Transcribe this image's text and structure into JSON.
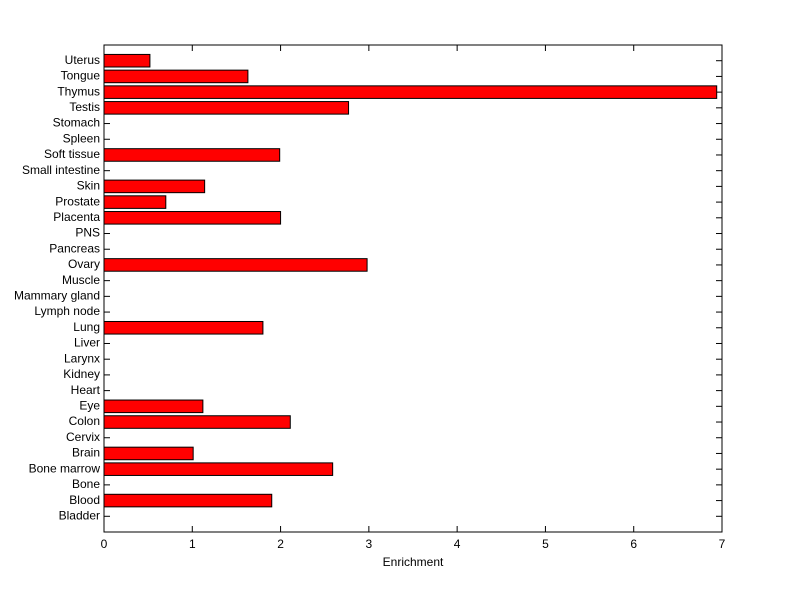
{
  "chart_data": {
    "type": "barh",
    "x_label": "Enrichment",
    "categories": [
      "Bladder",
      "Blood",
      "Bone",
      "Bone marrow",
      "Brain",
      "Cervix",
      "Colon",
      "Eye",
      "Heart",
      "Kidney",
      "Larynx",
      "Liver",
      "Lung",
      "Lymph node",
      "Mammary gland",
      "Muscle",
      "Ovary",
      "Pancreas",
      "PNS",
      "Placenta",
      "Prostate",
      "Skin",
      "Small intestine",
      "Soft tissue",
      "Spleen",
      "Stomach",
      "Testis",
      "Thymus",
      "Tongue",
      "Uterus"
    ],
    "values": [
      0,
      1.9,
      0,
      2.59,
      1.01,
      0,
      2.11,
      1.12,
      0,
      0,
      0,
      0,
      1.8,
      0,
      0,
      0,
      2.98,
      0,
      0,
      2.0,
      0.7,
      1.14,
      0,
      1.99,
      0,
      0,
      2.77,
      6.94,
      1.63,
      0.52
    ],
    "color": "#ff0000",
    "xlim": [
      0,
      7
    ],
    "xticks": [
      0,
      1,
      2,
      3,
      4,
      5,
      6,
      7
    ]
  }
}
